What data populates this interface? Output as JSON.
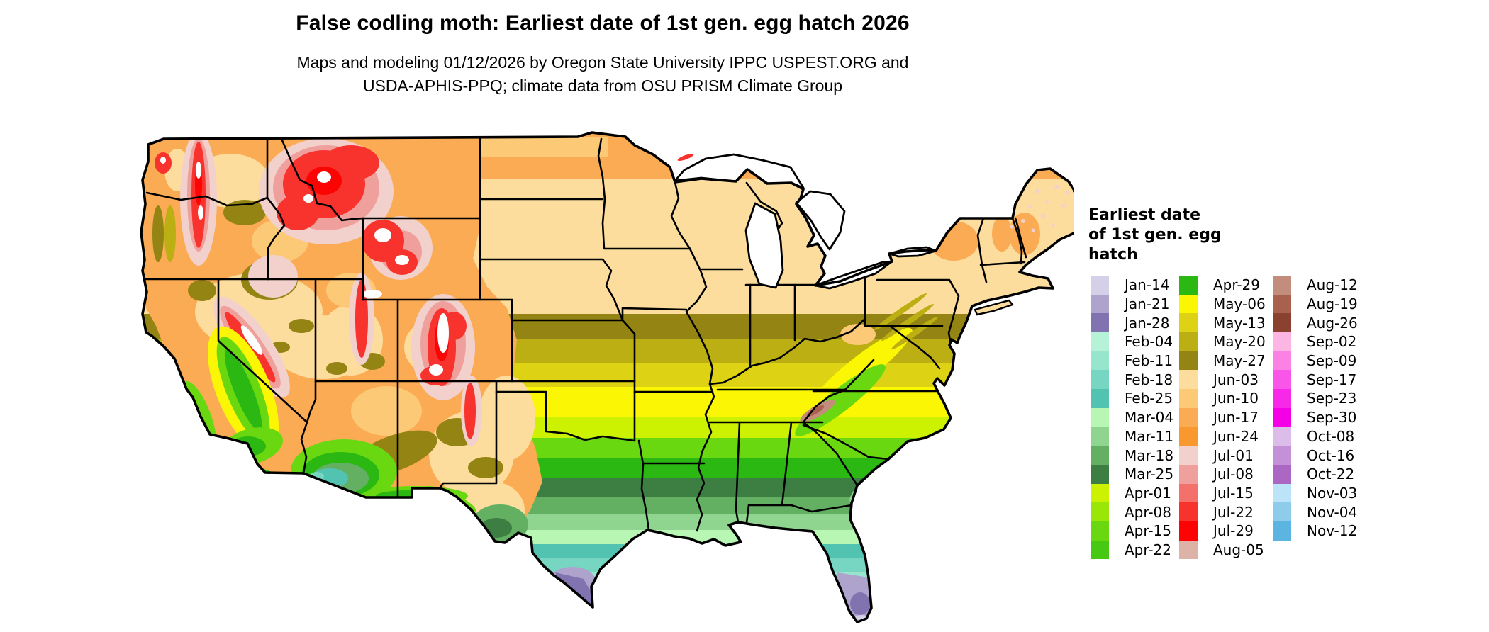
{
  "header": {
    "title": "False codling moth: Earliest date of 1st gen. egg hatch 2026",
    "subtitle_line1": "Maps and modeling 01/12/2026 by Oregon State University IPPC USPEST.ORG and",
    "subtitle_line2": "USDA-APHIS-PPQ; climate data from OSU PRISM Climate Group"
  },
  "map": {
    "type": "choropleth-raster",
    "region": "Contiguous United States"
  },
  "legend": {
    "title_lines": [
      "Earliest date",
      "of 1st gen. egg",
      "hatch"
    ],
    "columns": [
      {
        "entries": [
          {
            "label": "Jan-14",
            "color": "#d5cfe8"
          },
          {
            "label": "Jan-21",
            "color": "#aea3cc"
          },
          {
            "label": "Jan-28",
            "color": "#8173b0"
          },
          {
            "label": "Feb-04",
            "color": "#b5f2d8"
          },
          {
            "label": "Feb-11",
            "color": "#97e5cd"
          },
          {
            "label": "Feb-18",
            "color": "#76d6c2"
          },
          {
            "label": "Feb-25",
            "color": "#52c3b1"
          },
          {
            "label": "Mar-04",
            "color": "#b8f7b3"
          },
          {
            "label": "Mar-11",
            "color": "#8fd48f"
          },
          {
            "label": "Mar-18",
            "color": "#63b063"
          },
          {
            "label": "Mar-25",
            "color": "#3d7f42"
          },
          {
            "label": "Apr-01",
            "color": "#ccf202"
          },
          {
            "label": "Apr-08",
            "color": "#9ae607"
          },
          {
            "label": "Apr-15",
            "color": "#6ad810"
          },
          {
            "label": "Apr-22",
            "color": "#47c813"
          }
        ]
      },
      {
        "entries": [
          {
            "label": "Apr-29",
            "color": "#2cb812"
          },
          {
            "label": "May-06",
            "color": "#fbf603"
          },
          {
            "label": "May-13",
            "color": "#ddd213"
          },
          {
            "label": "May-20",
            "color": "#bcaf14"
          },
          {
            "label": "May-27",
            "color": "#948414"
          },
          {
            "label": "Jun-03",
            "color": "#fcdd9e"
          },
          {
            "label": "Jun-10",
            "color": "#fcc977"
          },
          {
            "label": "Jun-17",
            "color": "#fbab53"
          },
          {
            "label": "Jun-24",
            "color": "#fa9830"
          },
          {
            "label": "Jul-01",
            "color": "#f2d0cc"
          },
          {
            "label": "Jul-08",
            "color": "#f0a09c"
          },
          {
            "label": "Jul-15",
            "color": "#f4706a"
          },
          {
            "label": "Jul-22",
            "color": "#f8322c"
          },
          {
            "label": "Jul-29",
            "color": "#fc0404"
          },
          {
            "label": "Aug-05",
            "color": "#ddb3a8"
          }
        ]
      },
      {
        "entries": [
          {
            "label": "Aug-12",
            "color": "#c28d7c"
          },
          {
            "label": "Aug-19",
            "color": "#a8614c"
          },
          {
            "label": "Aug-26",
            "color": "#8a4130"
          },
          {
            "label": "Sep-02",
            "color": "#fdb5e4"
          },
          {
            "label": "Sep-09",
            "color": "#fc81e4"
          },
          {
            "label": "Sep-17",
            "color": "#f955e8"
          },
          {
            "label": "Sep-23",
            "color": "#f828e8"
          },
          {
            "label": "Sep-30",
            "color": "#f500e6"
          },
          {
            "label": "Oct-08",
            "color": "#dcbce8"
          },
          {
            "label": "Oct-16",
            "color": "#c491d8"
          },
          {
            "label": "Oct-22",
            "color": "#ac66c4"
          },
          {
            "label": "Nov-03",
            "color": "#bce4f8"
          },
          {
            "label": "Nov-04",
            "color": "#8eccec"
          },
          {
            "label": "Nov-12",
            "color": "#5cb4e0"
          }
        ]
      }
    ]
  }
}
